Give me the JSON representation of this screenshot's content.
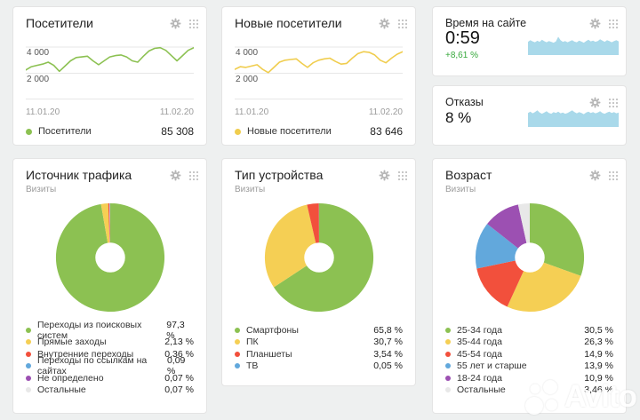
{
  "colors": {
    "green": "#8cc152",
    "yellow": "#f5cf54",
    "red": "#f2503c",
    "blue": "#62a8dc",
    "purple": "#9c50b2",
    "gray": "#e8e8e8",
    "spark": "#a9d9ea",
    "positive": "#37a93c"
  },
  "widgets": {
    "visitors": {
      "title": "Посетители",
      "y_top": "4 000",
      "y_bottom": "2 000",
      "date_start": "11.01.20",
      "date_end": "11.02.20",
      "legend_label": "Посетители",
      "total": "85 308",
      "color": "#8cc152",
      "series": [
        2250,
        2500,
        2600,
        2700,
        2850,
        2600,
        2150,
        2550,
        2950,
        3200,
        3250,
        3300,
        2950,
        2650,
        2950,
        3250,
        3350,
        3400,
        3250,
        2950,
        2850,
        3300,
        3700,
        3900,
        3950,
        3750,
        3350,
        2950,
        3350,
        3750,
        3950
      ]
    },
    "new_visitors": {
      "title": "Новые посетители",
      "y_top": "4 000",
      "y_bottom": "2 000",
      "date_start": "11.01.20",
      "date_end": "11.02.20",
      "legend_label": "Новые посетители",
      "total": "83 646",
      "color": "#f0cd4e",
      "series": [
        2300,
        2500,
        2450,
        2550,
        2650,
        2300,
        2050,
        2450,
        2850,
        3000,
        3050,
        3100,
        2750,
        2450,
        2800,
        3000,
        3100,
        3150,
        2900,
        2700,
        2750,
        3150,
        3500,
        3650,
        3600,
        3400,
        3000,
        2800,
        3150,
        3450,
        3650
      ]
    },
    "time_on_site": {
      "title": "Время на сайте",
      "value": "0:59",
      "change": "+8,61 %",
      "spark": [
        0.62,
        0.7,
        0.64,
        0.6,
        0.67,
        0.62,
        0.72,
        0.65,
        0.6,
        0.66,
        0.62,
        0.58,
        0.64,
        0.86,
        0.7,
        0.62,
        0.66,
        0.6,
        0.65,
        0.7,
        0.63,
        0.6,
        0.68,
        0.63,
        0.58,
        0.66,
        0.72,
        0.64,
        0.68,
        0.62,
        0.66,
        0.74,
        0.68,
        0.62,
        0.7,
        0.66,
        0.6,
        0.66,
        0.7,
        0.64
      ]
    },
    "bounces": {
      "title": "Отказы",
      "value": "8 %",
      "spark": [
        0.66,
        0.72,
        0.64,
        0.7,
        0.78,
        0.68,
        0.62,
        0.68,
        0.74,
        0.66,
        0.62,
        0.7,
        0.66,
        0.72,
        0.64,
        0.68,
        0.62,
        0.66,
        0.72,
        0.78,
        0.7,
        0.64,
        0.7,
        0.66,
        0.6,
        0.68,
        0.72,
        0.66,
        0.7,
        0.64,
        0.68,
        0.74,
        0.66,
        0.62,
        0.68,
        0.72,
        0.66,
        0.7,
        0.64,
        0.68
      ]
    },
    "traffic_source": {
      "title": "Источник трафика",
      "subtitle": "Визиты",
      "slices": [
        {
          "label": "Переходы из поисковых систем",
          "value": "97,3 %",
          "pct": 97.3,
          "color": "#8cc152"
        },
        {
          "label": "Прямые заходы",
          "value": "2,13 %",
          "pct": 2.13,
          "color": "#f5cf54"
        },
        {
          "label": "Внутренние переходы",
          "value": "0,36 %",
          "pct": 0.36,
          "color": "#f2503c"
        },
        {
          "label": "Переходы по ссылкам на сайтах",
          "value": "0,09 %",
          "pct": 0.09,
          "color": "#62a8dc"
        },
        {
          "label": "Не определено",
          "value": "0,07 %",
          "pct": 0.07,
          "color": "#9c50b2"
        },
        {
          "label": "Остальные",
          "value": "0,07 %",
          "pct": 0.07,
          "color": "#e8e8e8"
        }
      ]
    },
    "device_type": {
      "title": "Тип устройства",
      "subtitle": "Визиты",
      "slices": [
        {
          "label": "Смартфоны",
          "value": "65,8 %",
          "pct": 65.8,
          "color": "#8cc152"
        },
        {
          "label": "ПК",
          "value": "30,7 %",
          "pct": 30.7,
          "color": "#f5cf54"
        },
        {
          "label": "Планшеты",
          "value": "3,54 %",
          "pct": 3.54,
          "color": "#f2503c"
        },
        {
          "label": "ТВ",
          "value": "0,05 %",
          "pct": 0.05,
          "color": "#62a8dc"
        }
      ]
    },
    "age": {
      "title": "Возраст",
      "subtitle": "Визиты",
      "slices": [
        {
          "label": "25-34 года",
          "value": "30,5 %",
          "pct": 30.5,
          "color": "#8cc152"
        },
        {
          "label": "35-44 года",
          "value": "26,3 %",
          "pct": 26.3,
          "color": "#f5cf54"
        },
        {
          "label": "45-54 года",
          "value": "14,9 %",
          "pct": 14.9,
          "color": "#f2503c"
        },
        {
          "label": "55 лет и старше",
          "value": "13,9 %",
          "pct": 13.9,
          "color": "#62a8dc"
        },
        {
          "label": "18-24 года",
          "value": "10,9 %",
          "pct": 10.9,
          "color": "#9c50b2"
        },
        {
          "label": "Остальные",
          "value": "3,46 %",
          "pct": 3.46,
          "color": "#e8e8e8"
        }
      ]
    }
  },
  "watermark": {
    "text": "Avito"
  },
  "chart_data": [
    {
      "type": "line",
      "title": "Посетители",
      "x_range": [
        "11.01.20",
        "11.02.20"
      ],
      "ylabel": "",
      "ylim": [
        0,
        4400
      ],
      "yticks": [
        2000,
        4000
      ],
      "legend_position": "bottom",
      "grid": true,
      "series": [
        {
          "name": "Посетители",
          "total": 85308,
          "values": [
            2250,
            2500,
            2600,
            2700,
            2850,
            2600,
            2150,
            2550,
            2950,
            3200,
            3250,
            3300,
            2950,
            2650,
            2950,
            3250,
            3350,
            3400,
            3250,
            2950,
            2850,
            3300,
            3700,
            3900,
            3950,
            3750,
            3350,
            2950,
            3350,
            3750,
            3950
          ]
        }
      ]
    },
    {
      "type": "line",
      "title": "Новые посетители",
      "x_range": [
        "11.01.20",
        "11.02.20"
      ],
      "ylim": [
        0,
        4400
      ],
      "yticks": [
        2000,
        4000
      ],
      "legend_position": "bottom",
      "grid": true,
      "series": [
        {
          "name": "Новые посетители",
          "total": 83646,
          "values": [
            2300,
            2500,
            2450,
            2550,
            2650,
            2300,
            2050,
            2450,
            2850,
            3000,
            3050,
            3100,
            2750,
            2450,
            2800,
            3000,
            3100,
            3150,
            2900,
            2700,
            2750,
            3150,
            3500,
            3650,
            3600,
            3400,
            3000,
            2800,
            3150,
            3450,
            3650
          ]
        }
      ]
    },
    {
      "type": "area",
      "title": "Время на сайте",
      "value": "0:59",
      "change": "+8,61 %",
      "note": "sparkline, normalized values",
      "values": [
        0.62,
        0.7,
        0.64,
        0.6,
        0.67,
        0.62,
        0.72,
        0.65,
        0.6,
        0.66,
        0.62,
        0.58,
        0.64,
        0.86,
        0.7,
        0.62,
        0.66,
        0.6,
        0.65,
        0.7,
        0.63,
        0.6,
        0.68,
        0.63,
        0.58,
        0.66,
        0.72,
        0.64,
        0.68,
        0.62,
        0.66,
        0.74,
        0.68,
        0.62,
        0.7,
        0.66,
        0.6,
        0.66,
        0.7,
        0.64
      ]
    },
    {
      "type": "area",
      "title": "Отказы",
      "value": "8 %",
      "note": "sparkline, normalized values",
      "values": [
        0.66,
        0.72,
        0.64,
        0.7,
        0.78,
        0.68,
        0.62,
        0.68,
        0.74,
        0.66,
        0.62,
        0.7,
        0.66,
        0.72,
        0.64,
        0.68,
        0.62,
        0.66,
        0.72,
        0.78,
        0.7,
        0.64,
        0.7,
        0.66,
        0.6,
        0.68,
        0.72,
        0.66,
        0.7,
        0.64,
        0.68,
        0.74,
        0.66,
        0.62,
        0.68,
        0.72,
        0.66,
        0.7,
        0.64,
        0.68
      ]
    },
    {
      "type": "pie",
      "title": "Источник трафика",
      "subtitle": "Визиты",
      "labels": [
        "Переходы из поисковых систем",
        "Прямые заходы",
        "Внутренние переходы",
        "Переходы по ссылкам на сайтах",
        "Не определено",
        "Остальные"
      ],
      "values": [
        97.3,
        2.13,
        0.36,
        0.09,
        0.07,
        0.07
      ],
      "legend_position": "bottom"
    },
    {
      "type": "pie",
      "title": "Тип устройства",
      "subtitle": "Визиты",
      "labels": [
        "Смартфоны",
        "ПК",
        "Планшеты",
        "ТВ"
      ],
      "values": [
        65.8,
        30.7,
        3.54,
        0.05
      ],
      "legend_position": "bottom"
    },
    {
      "type": "pie",
      "title": "Возраст",
      "subtitle": "Визиты",
      "labels": [
        "25-34 года",
        "35-44 года",
        "45-54 года",
        "55 лет и старше",
        "18-24 года",
        "Остальные"
      ],
      "values": [
        30.5,
        26.3,
        14.9,
        13.9,
        10.9,
        3.46
      ],
      "legend_position": "bottom"
    }
  ]
}
